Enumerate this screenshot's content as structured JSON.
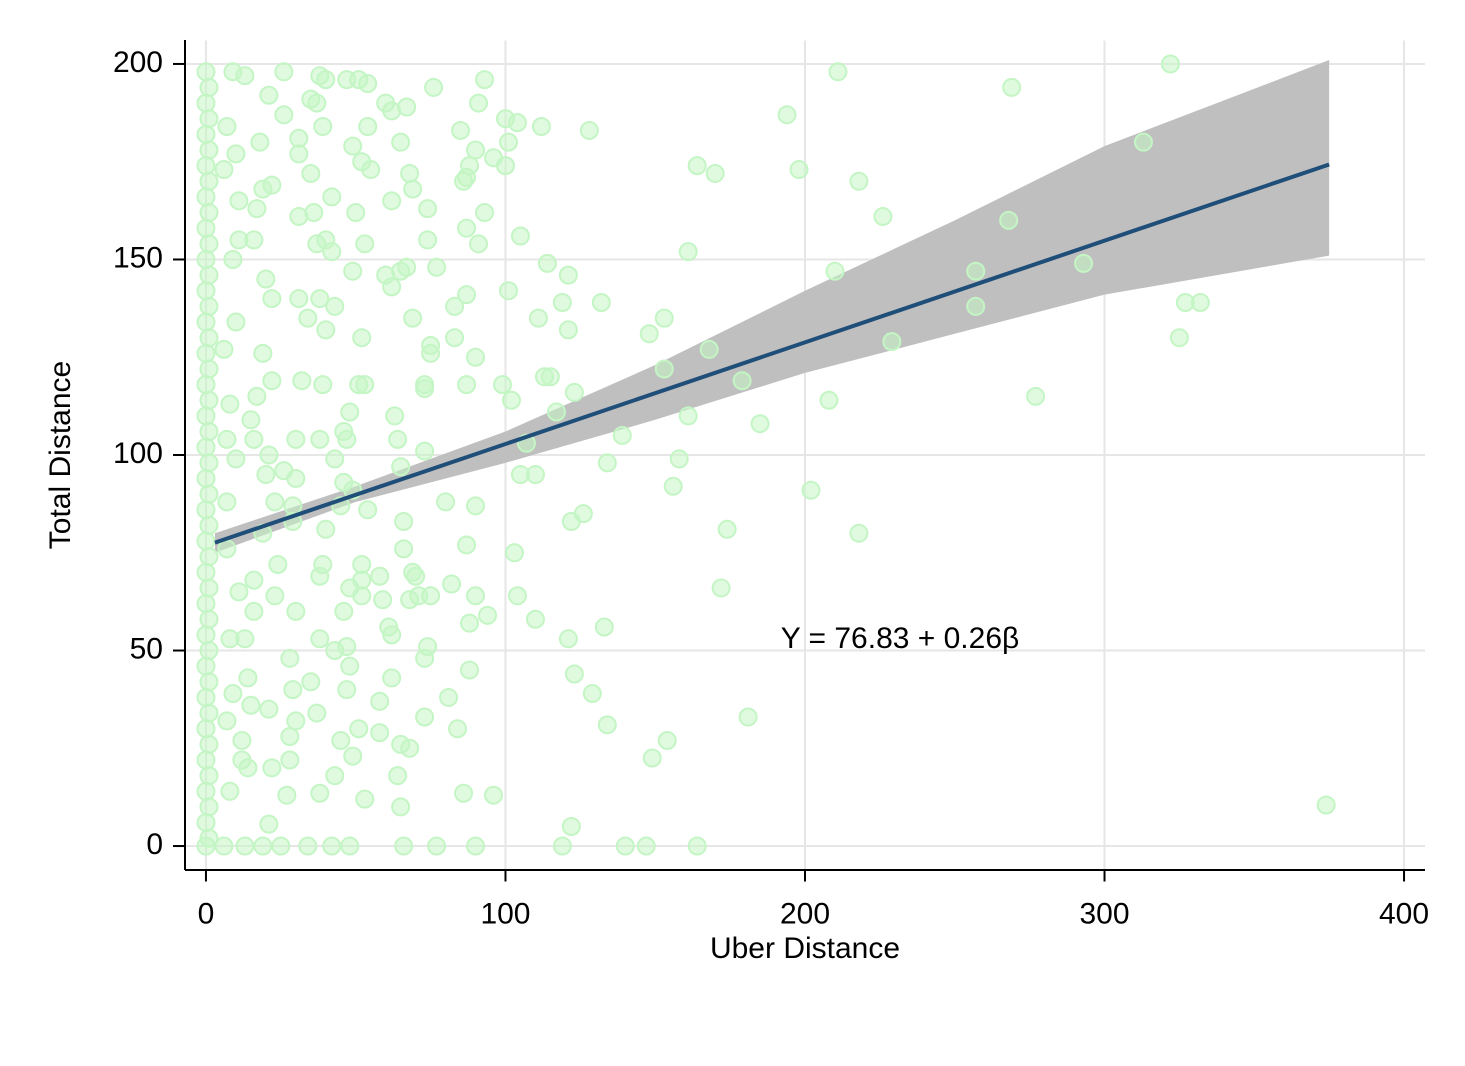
{
  "chart_data": {
    "type": "scatter",
    "x_label": "Uber Distance",
    "y_label": "Total Distance",
    "annotation": "Y = 76.83 + 0.26β",
    "xlim": [
      -7,
      407
    ],
    "ylim": [
      -6,
      206
    ],
    "xticks": [
      0,
      100,
      200,
      300,
      400
    ],
    "yticks": [
      0,
      50,
      100,
      150,
      200
    ],
    "grid": true,
    "color": "#c4f5c4",
    "x": [
      374,
      322,
      313,
      325,
      327,
      332,
      293,
      269,
      268,
      257,
      257,
      277,
      229,
      226,
      218,
      211,
      210,
      208,
      218,
      202,
      198,
      194,
      185,
      179,
      181,
      174,
      172,
      170,
      164,
      161,
      161,
      168,
      158,
      156,
      153,
      153,
      148,
      154,
      149,
      164,
      147,
      140,
      139,
      134,
      132,
      133,
      134,
      129,
      128,
      121,
      121,
      119,
      123,
      117,
      115,
      113,
      114,
      122,
      126,
      123,
      121,
      122,
      119,
      112,
      111,
      110,
      110,
      105,
      107,
      105,
      104,
      100,
      101,
      100,
      101,
      102,
      99,
      103,
      104,
      94,
      93,
      91,
      90,
      91,
      90,
      90,
      88,
      96,
      93,
      87,
      87,
      86,
      85,
      87,
      87,
      87,
      88,
      90,
      88,
      86,
      90,
      96,
      83,
      83,
      82,
      81,
      84,
      80,
      77,
      76,
      75,
      75,
      77,
      74,
      74,
      73,
      73,
      73,
      73,
      74,
      73,
      75,
      66,
      65,
      68,
      65,
      67,
      68,
      69,
      62,
      60,
      65,
      62,
      60,
      65,
      67,
      69,
      62,
      63,
      64,
      65,
      66,
      66,
      69,
      70,
      71,
      68,
      61,
      62,
      62,
      64,
      58,
      58,
      58,
      59,
      52,
      52,
      52,
      55,
      54,
      49,
      50,
      52,
      53,
      49,
      52,
      51,
      53,
      48,
      46,
      47,
      43,
      46,
      49,
      45,
      54,
      48,
      46,
      43,
      47,
      48,
      47,
      51,
      45,
      49,
      53,
      42,
      48,
      34,
      43,
      38,
      37,
      35,
      38,
      38,
      39,
      40,
      38,
      39,
      40,
      38,
      39,
      37,
      38,
      40,
      47,
      51,
      54,
      35,
      35,
      36,
      37,
      40,
      42,
      42,
      43,
      31,
      31,
      31,
      31,
      34,
      32,
      30,
      30,
      29,
      29,
      30,
      28,
      29,
      30,
      28,
      28,
      27,
      25,
      19,
      13,
      6,
      21,
      22,
      21,
      23,
      24,
      23,
      20,
      26,
      21,
      22,
      22,
      22,
      26,
      26,
      21,
      18,
      19,
      17,
      16,
      20,
      19,
      17,
      15,
      16,
      19,
      16,
      16,
      13,
      14,
      15,
      12,
      14,
      8,
      9,
      13,
      7,
      10,
      6,
      11,
      11,
      9,
      10,
      6,
      8,
      7,
      10,
      7,
      7,
      11,
      8,
      9,
      7,
      12,
      0,
      1,
      0,
      1,
      0,
      1,
      0,
      1,
      0,
      1,
      0,
      1,
      0,
      1,
      0,
      1,
      0,
      1,
      0,
      1,
      0,
      1,
      0,
      1,
      0,
      1,
      0,
      1,
      0,
      1,
      0,
      1,
      0,
      1,
      0,
      1,
      0,
      1,
      0,
      1,
      0,
      1,
      0,
      1,
      0,
      1,
      0,
      1,
      0,
      1,
      0
    ],
    "values": [
      10.5,
      200,
      180,
      130,
      139,
      139,
      149,
      194,
      160,
      147,
      138,
      115,
      129,
      161,
      170,
      198,
      147,
      114,
      80,
      91,
      173,
      187,
      108,
      119,
      33,
      81,
      66,
      172,
      174,
      152,
      110,
      127,
      99,
      92,
      135,
      122,
      131,
      27,
      22.5,
      0,
      0,
      0,
      105,
      98,
      139,
      56,
      31,
      39,
      183,
      146,
      132,
      139,
      116,
      111,
      120,
      120,
      149,
      83,
      85,
      44,
      53,
      5,
      0,
      184,
      135,
      95,
      58,
      95,
      103,
      156,
      185,
      186,
      180,
      174,
      142,
      114,
      118,
      75,
      64,
      59,
      196,
      190,
      178,
      154,
      125,
      87,
      174,
      176,
      162,
      171,
      158,
      170,
      183,
      141,
      118,
      77,
      57,
      64,
      45,
      13.5,
      0,
      13,
      130,
      138,
      67,
      38,
      30,
      88,
      0,
      194,
      126,
      128,
      148,
      163,
      155,
      101,
      118,
      117,
      48,
      51,
      33,
      64,
      0,
      10,
      25,
      26,
      189,
      172,
      168,
      188,
      190,
      180,
      165,
      146,
      147,
      148,
      135,
      143,
      110,
      104,
      97,
      83,
      76,
      70,
      69,
      64,
      63,
      56,
      54,
      43,
      18,
      37,
      29,
      69,
      63,
      64,
      72,
      68,
      173,
      184,
      179,
      162,
      175,
      154,
      147,
      130,
      118,
      118,
      111,
      106,
      104,
      99,
      93,
      91,
      87,
      86,
      66,
      60,
      50,
      51,
      46,
      40,
      30,
      27,
      23,
      12,
      0,
      0,
      0,
      18,
      13.5,
      34,
      42,
      53,
      69,
      72,
      81,
      104,
      118,
      132,
      140,
      184,
      190,
      197,
      196,
      196,
      196,
      195,
      191,
      172,
      162,
      154,
      155,
      152,
      166,
      138,
      181,
      177,
      161,
      140,
      135,
      119,
      104,
      94,
      87,
      83,
      60,
      48,
      40,
      32,
      28,
      22,
      13,
      0,
      0,
      0,
      0,
      5.6,
      20,
      35,
      64,
      72,
      88,
      95,
      96,
      100,
      119,
      140,
      169,
      187,
      198,
      192,
      180,
      168,
      163,
      155,
      145,
      126,
      115,
      109,
      104,
      80,
      68,
      60,
      53,
      43,
      36,
      27,
      20,
      14,
      198,
      197,
      184,
      177,
      173,
      165,
      155,
      150,
      134,
      127,
      113,
      104,
      99,
      88,
      76,
      65,
      53,
      39,
      32,
      22,
      198,
      194,
      190,
      186,
      182,
      178,
      174,
      170,
      166,
      162,
      158,
      154,
      150,
      146,
      142,
      138,
      134,
      130,
      126,
      122,
      118,
      114,
      110,
      106,
      102,
      98,
      94,
      90,
      86,
      82,
      78,
      74,
      70,
      66,
      62,
      58,
      54,
      50,
      46,
      42,
      38,
      34,
      30,
      26,
      22,
      18,
      14,
      10,
      6,
      2,
      0
    ],
    "fit": {
      "color": "#1f4e79",
      "x": [
        3,
        375
      ],
      "values": [
        77.6,
        174.3
      ]
    },
    "band": {
      "color": "#bfbfbf",
      "x": [
        3,
        50,
        100,
        150,
        200,
        250,
        300,
        375
      ],
      "upper": [
        80,
        92,
        106,
        123,
        142,
        160,
        179,
        201
      ],
      "lower": [
        75,
        88,
        98,
        109,
        121,
        131,
        141,
        151
      ]
    }
  }
}
